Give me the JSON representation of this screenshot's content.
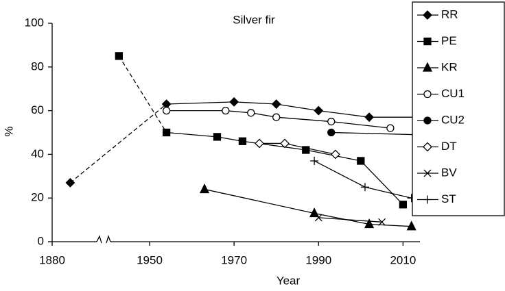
{
  "chart_data": {
    "type": "line",
    "title": "Silver fir",
    "xlabel": "Year",
    "ylabel": "%",
    "xlim": [
      1880,
      2014
    ],
    "xticks": [
      1880,
      1950,
      1970,
      1990,
      2010
    ],
    "x_break": [
      1880,
      1950
    ],
    "ylim": [
      0,
      100
    ],
    "yticks": [
      0,
      20,
      40,
      60,
      80,
      100
    ],
    "grid": false,
    "legend": "right",
    "series": [
      {
        "name": "RR",
        "color": "#000",
        "marker": "diamond-filled",
        "dashed_segments": [
          0
        ],
        "x": [
          1893,
          1954,
          1970,
          1980,
          1990,
          2002,
          2014
        ],
        "values": [
          27,
          63,
          64,
          63,
          60,
          57,
          57
        ]
      },
      {
        "name": "PE",
        "color": "#000",
        "marker": "square-filled",
        "dashed_segments": [
          0
        ],
        "x": [
          1928,
          1954,
          1966,
          1972,
          1987,
          2000,
          2010
        ],
        "values": [
          85,
          50,
          48,
          46,
          42,
          37,
          17
        ]
      },
      {
        "name": "KR",
        "color": "#000",
        "marker": "triangle-filled",
        "x": [
          1963,
          1989,
          2002,
          2012
        ],
        "values": [
          24,
          13,
          8,
          7
        ]
      },
      {
        "name": "CU1",
        "color": "#000",
        "marker": "circle-open",
        "x": [
          1954,
          1968,
          1974,
          1980,
          1993,
          2007
        ],
        "values": [
          60,
          60,
          59,
          57,
          55,
          52
        ]
      },
      {
        "name": "CU2",
        "color": "#000",
        "marker": "circle-filled",
        "x": [
          1993,
          2013
        ],
        "values": [
          50,
          49
        ]
      },
      {
        "name": "DT",
        "color": "#000",
        "marker": "diamond-open",
        "x": [
          1976,
          1982,
          1994
        ],
        "values": [
          45,
          45,
          40
        ]
      },
      {
        "name": "BV",
        "color": "#000",
        "marker": "x",
        "x": [
          1990,
          2005
        ],
        "values": [
          11,
          9
        ]
      },
      {
        "name": "ST",
        "color": "#000",
        "marker": "plus",
        "x": [
          1989,
          2001,
          2012
        ],
        "values": [
          37,
          25,
          20
        ]
      }
    ]
  }
}
